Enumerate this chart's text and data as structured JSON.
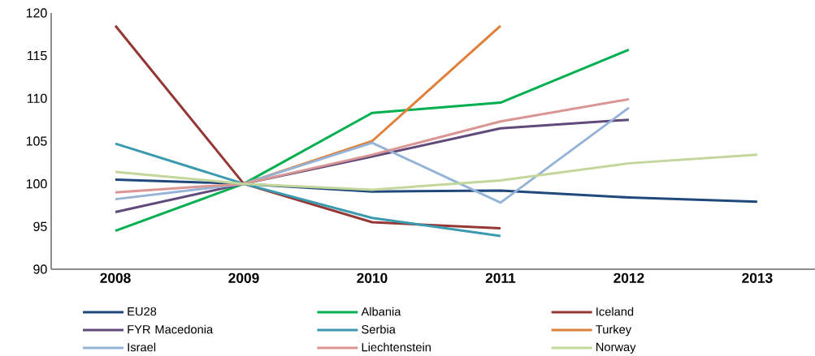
{
  "chart_data": {
    "type": "line",
    "categories": [
      "2008",
      "2009",
      "2010",
      "2011",
      "2012",
      "2013"
    ],
    "series": [
      {
        "name": "EU28",
        "color": "#1f497d",
        "values": [
          100.5,
          100,
          99.1,
          99.2,
          98.4,
          97.9
        ]
      },
      {
        "name": "Albania",
        "color": "#00b050",
        "values": [
          94.5,
          100,
          108.3,
          109.5,
          115.7,
          null
        ]
      },
      {
        "name": "Iceland",
        "color": "#953735",
        "values": [
          118.5,
          100,
          95.5,
          94.8,
          null,
          null
        ]
      },
      {
        "name": "FYR Macedonia",
        "color": "#604a7b",
        "values": [
          96.7,
          100,
          103.2,
          106.5,
          107.5,
          null
        ]
      },
      {
        "name": "Serbia",
        "color": "#3a9bb0",
        "values": [
          104.7,
          100,
          96.0,
          93.9,
          null,
          null
        ]
      },
      {
        "name": "Turkey",
        "color": "#e0803a",
        "values": [
          null,
          100,
          105.0,
          118.5,
          null,
          null
        ]
      },
      {
        "name": "Israel",
        "color": "#95b3d7",
        "values": [
          98.2,
          100,
          104.8,
          97.8,
          108.9,
          null
        ]
      },
      {
        "name": "Liechtenstein",
        "color": "#d99694",
        "values": [
          99.0,
          100,
          103.4,
          107.3,
          109.9,
          null
        ]
      },
      {
        "name": "Norway",
        "color": "#c3d69b",
        "values": [
          101.4,
          100,
          99.3,
          100.4,
          102.4,
          103.4
        ]
      }
    ],
    "ylim": [
      90,
      120
    ],
    "yticks": [
      90,
      95,
      100,
      105,
      110,
      115,
      120
    ],
    "grid": false,
    "legend": "bottom",
    "marker": "none",
    "line_style": "solid"
  }
}
